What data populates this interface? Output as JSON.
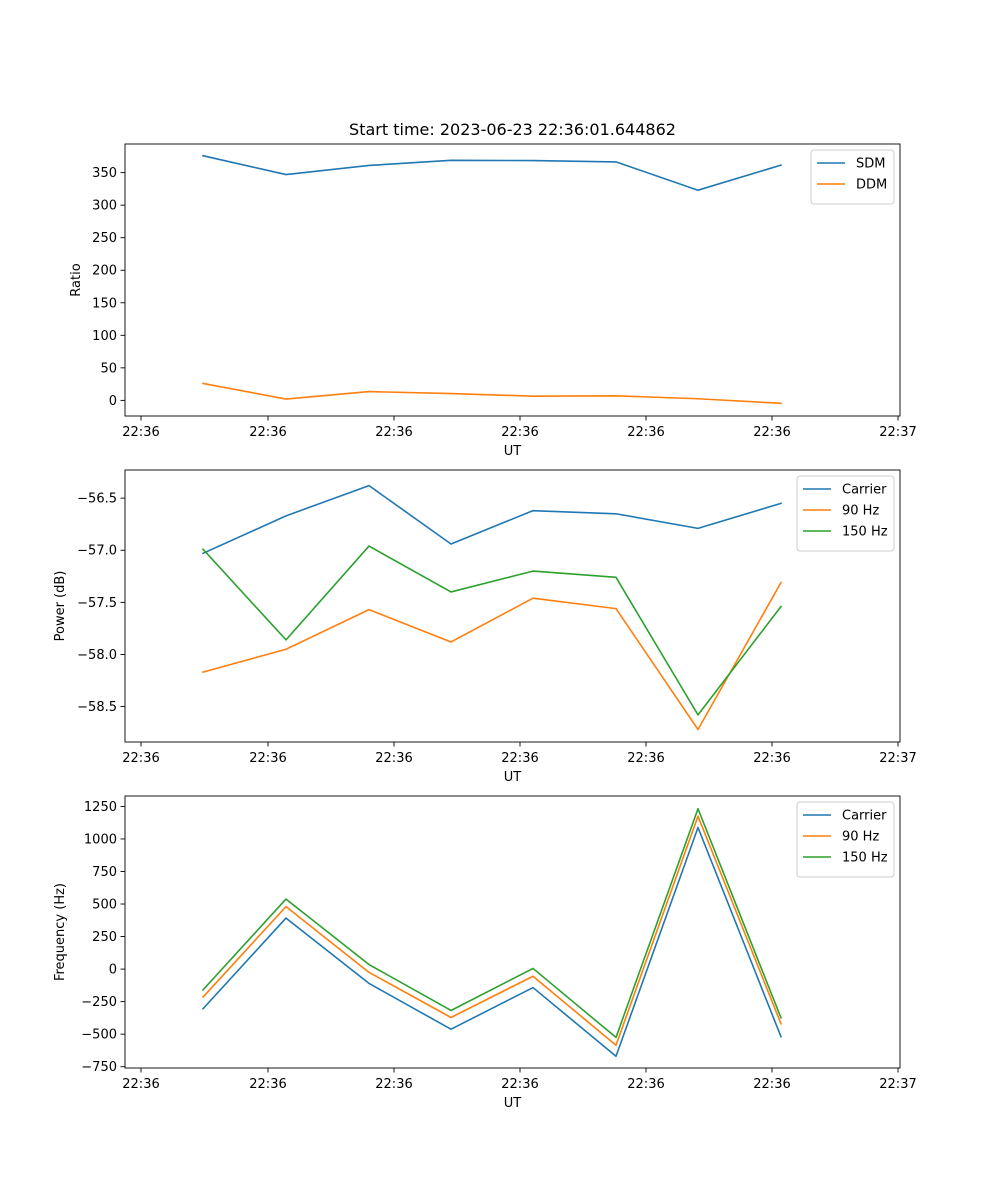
{
  "chart_data": [
    {
      "type": "line",
      "title": "Start time: 2023-06-23 22:36:01.644862",
      "xlabel": "UT",
      "ylabel": "Ratio",
      "x_tick_labels": [
        "22:36",
        "22:36",
        "22:36",
        "22:36",
        "22:36",
        "22:36",
        "22:37"
      ],
      "ylim": [
        -24,
        394
      ],
      "y_ticks": [
        0,
        50,
        100,
        150,
        200,
        250,
        300,
        350
      ],
      "grid": false,
      "legend_position": "top-right",
      "series": [
        {
          "name": "SDM",
          "color": "#1f77b4",
          "values": [
            376,
            347,
            361,
            369,
            368.5,
            366.5,
            323,
            361.5
          ]
        },
        {
          "name": "DDM",
          "color": "#ff7f0e",
          "values": [
            26,
            2,
            13.5,
            10.5,
            6.5,
            7,
            2.5,
            -4.5
          ]
        }
      ]
    },
    {
      "type": "line",
      "title": "",
      "xlabel": "UT",
      "ylabel": "Power (dB)",
      "x_tick_labels": [
        "22:36",
        "22:36",
        "22:36",
        "22:36",
        "22:36",
        "22:36",
        "22:37"
      ],
      "ylim": [
        -58.84,
        -56.23
      ],
      "y_ticks": [
        -56.5,
        -57.0,
        -57.5,
        -58.0,
        -58.5
      ],
      "y_tick_labels": [
        "−56.5",
        "−57.0",
        "−57.5",
        "−58.0",
        "−58.5"
      ],
      "grid": false,
      "legend_position": "top-right",
      "series": [
        {
          "name": "Carrier",
          "color": "#1f77b4",
          "values": [
            -57.03,
            -56.67,
            -56.38,
            -56.94,
            -56.62,
            -56.65,
            -56.79,
            -56.55
          ]
        },
        {
          "name": "90 Hz",
          "color": "#ff7f0e",
          "values": [
            -58.17,
            -57.95,
            -57.57,
            -57.88,
            -57.46,
            -57.56,
            -58.72,
            -57.31
          ]
        },
        {
          "name": "150 Hz",
          "color": "#2ca02c",
          "values": [
            -56.99,
            -57.86,
            -56.96,
            -57.4,
            -57.2,
            -57.26,
            -58.58,
            -57.54
          ]
        }
      ]
    },
    {
      "type": "line",
      "title": "",
      "xlabel": "UT",
      "ylabel": "Frequency (Hz)",
      "x_tick_labels": [
        "22:36",
        "22:36",
        "22:36",
        "22:36",
        "22:36",
        "22:36",
        "22:37"
      ],
      "ylim": [
        -760,
        1330
      ],
      "y_ticks": [
        1250,
        1000,
        750,
        500,
        250,
        0,
        -250,
        -500,
        -750
      ],
      "y_tick_labels": [
        "1250",
        "1000",
        "750",
        "500",
        "250",
        "0",
        "−250",
        "−500",
        "−750"
      ],
      "grid": false,
      "legend_position": "top-right",
      "series": [
        {
          "name": "Carrier",
          "color": "#1f77b4",
          "values": [
            -305,
            392,
            -110,
            -462,
            -142,
            -670,
            1088,
            -520
          ]
        },
        {
          "name": "90 Hz",
          "color": "#ff7f0e",
          "values": [
            -215,
            480,
            -25,
            -372,
            -55,
            -585,
            1175,
            -420
          ]
        },
        {
          "name": "150 Hz",
          "color": "#2ca02c",
          "values": [
            -160,
            538,
            35,
            -318,
            5,
            -525,
            1232,
            -375
          ]
        }
      ]
    }
  ]
}
